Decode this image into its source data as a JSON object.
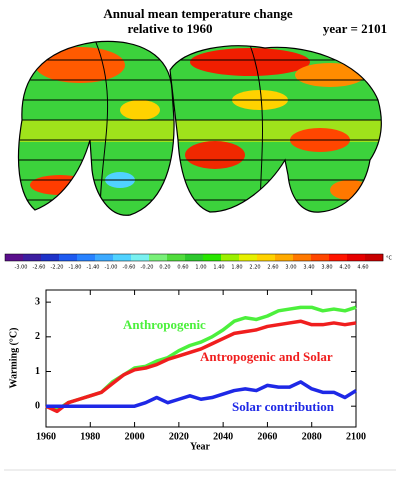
{
  "header": {
    "title": "Annual mean temperature change",
    "subtitle": "relative to 1960",
    "year": "year = 2101"
  },
  "colorbar": {
    "labels": [
      "-3.00",
      "-2.60",
      "-2.20",
      "-1.80",
      "-1.40",
      "-1.00",
      "-0.60",
      "-0.20",
      "0.20",
      "0.60",
      "1.00",
      "1.40",
      "1.80",
      "2.20",
      "2.60",
      "3.00",
      "3.40",
      "3.80",
      "4.20",
      "4.60"
    ],
    "unit": "°C",
    "colors": [
      "#5a0f8c",
      "#3c1ea0",
      "#1e32c8",
      "#1e5af0",
      "#2882ff",
      "#3caaff",
      "#50d2ff",
      "#78f0f0",
      "#78f078",
      "#50dc3c",
      "#2dc82d",
      "#28e600",
      "#9bf000",
      "#e6f000",
      "#ffd200",
      "#ffaa00",
      "#ff7800",
      "#ff4600",
      "#ff1400",
      "#e60000",
      "#c80000"
    ]
  },
  "chart_data": {
    "type": "line",
    "xlabel": "Year",
    "ylabel": "Warming (°C)",
    "x": [
      1960,
      1965,
      1970,
      1975,
      1980,
      1985,
      1990,
      1995,
      2000,
      2005,
      2010,
      2015,
      2020,
      2025,
      2030,
      2035,
      2040,
      2045,
      2050,
      2055,
      2060,
      2065,
      2070,
      2075,
      2080,
      2085,
      2090,
      2095,
      2100
    ],
    "series": [
      {
        "name": "Anthropogenic",
        "color": "#4cf03c",
        "values": [
          0,
          -0.1,
          0.1,
          0.2,
          0.3,
          0.4,
          0.7,
          0.9,
          1.1,
          1.15,
          1.3,
          1.4,
          1.6,
          1.75,
          1.85,
          2.0,
          2.2,
          2.45,
          2.55,
          2.5,
          2.6,
          2.75,
          2.8,
          2.85,
          2.85,
          2.75,
          2.8,
          2.75,
          2.85
        ]
      },
      {
        "name": "Antropogenic and Solar",
        "color": "#f01e1e",
        "values": [
          0,
          -0.15,
          0.1,
          0.2,
          0.3,
          0.4,
          0.65,
          0.9,
          1.05,
          1.1,
          1.2,
          1.35,
          1.45,
          1.55,
          1.65,
          1.8,
          1.95,
          2.1,
          2.15,
          2.2,
          2.3,
          2.35,
          2.4,
          2.45,
          2.35,
          2.35,
          2.4,
          2.35,
          2.4
        ]
      },
      {
        "name": "Solar contribution",
        "color": "#1e28e6",
        "values": [
          0,
          0,
          0,
          0,
          0,
          0,
          0,
          0,
          0,
          0.1,
          0.25,
          0.1,
          0.2,
          0.3,
          0.2,
          0.25,
          0.35,
          0.45,
          0.5,
          0.45,
          0.6,
          0.55,
          0.55,
          0.7,
          0.5,
          0.4,
          0.4,
          0.25,
          0.45
        ]
      }
    ],
    "xlim": [
      1960,
      2100
    ],
    "xticks": [
      1960,
      1980,
      2000,
      2020,
      2040,
      2060,
      2080,
      2100
    ],
    "ylim": [
      -0.6,
      3.35
    ],
    "yticks": [
      0,
      1,
      2,
      3
    ]
  }
}
